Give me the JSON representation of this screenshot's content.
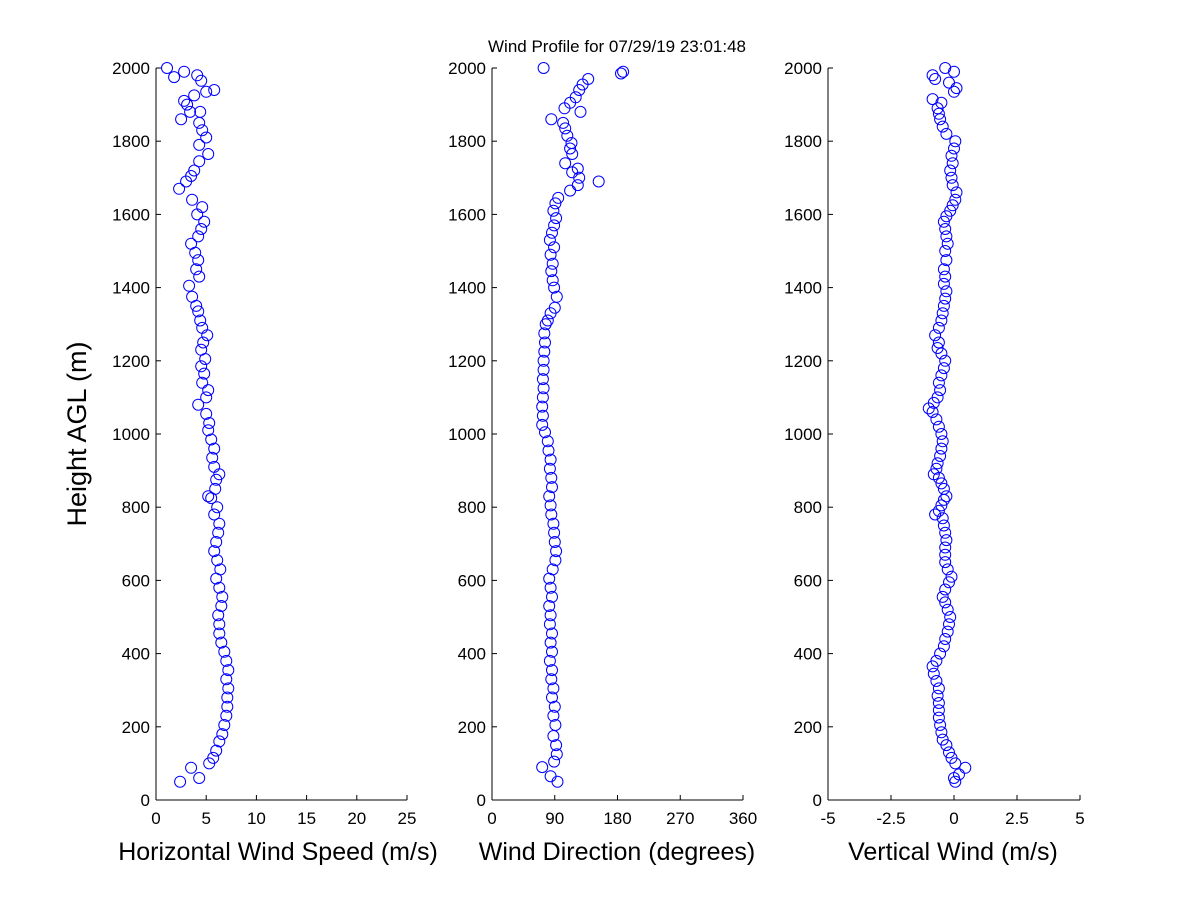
{
  "figure": {
    "title": "Wind Profile for  07/29/19 23:01:48"
  },
  "colors": {
    "marker": "#0000ff",
    "axis": "#000000",
    "background": "#ffffff"
  },
  "chart_data": [
    {
      "type": "scatter",
      "xlabel": "Horizontal Wind Speed (m/s)",
      "ylabel": "Height AGL (m)",
      "xlim": [
        0,
        25
      ],
      "ylim": [
        0,
        2000
      ],
      "xticks": [
        "0",
        "5",
        "10",
        "15",
        "20",
        "25"
      ],
      "xtick_values": [
        0,
        5,
        10,
        15,
        20,
        25
      ],
      "yticks": [
        "0",
        "200",
        "400",
        "600",
        "800",
        "1000",
        "1200",
        "1400",
        "1600",
        "1800",
        "2000"
      ],
      "ytick_values": [
        0,
        200,
        400,
        600,
        800,
        1000,
        1200,
        1400,
        1600,
        1800,
        2000
      ],
      "grid": false,
      "marker": "open-circle",
      "points": [
        [
          2.4,
          50
        ],
        [
          4.3,
          60
        ],
        [
          3.5,
          88
        ],
        [
          5.3,
          100
        ],
        [
          5.7,
          115
        ],
        [
          6.0,
          135
        ],
        [
          6.3,
          160
        ],
        [
          6.6,
          180
        ],
        [
          6.8,
          205
        ],
        [
          7.0,
          230
        ],
        [
          7.1,
          255
        ],
        [
          7.1,
          280
        ],
        [
          7.2,
          305
        ],
        [
          7.0,
          330
        ],
        [
          7.2,
          355
        ],
        [
          7.0,
          380
        ],
        [
          6.8,
          405
        ],
        [
          6.5,
          430
        ],
        [
          6.3,
          455
        ],
        [
          6.3,
          480
        ],
        [
          6.2,
          505
        ],
        [
          6.5,
          530
        ],
        [
          6.6,
          555
        ],
        [
          6.3,
          580
        ],
        [
          6.0,
          605
        ],
        [
          6.4,
          630
        ],
        [
          6.1,
          655
        ],
        [
          5.8,
          680
        ],
        [
          6.0,
          705
        ],
        [
          6.2,
          730
        ],
        [
          6.3,
          755
        ],
        [
          5.8,
          780
        ],
        [
          6.1,
          800
        ],
        [
          5.5,
          825
        ],
        [
          5.2,
          830
        ],
        [
          5.9,
          850
        ],
        [
          6.0,
          875
        ],
        [
          6.3,
          890
        ],
        [
          5.8,
          910
        ],
        [
          5.6,
          935
        ],
        [
          5.8,
          960
        ],
        [
          5.5,
          985
        ],
        [
          5.2,
          1010
        ],
        [
          5.3,
          1030
        ],
        [
          5.0,
          1055
        ],
        [
          4.2,
          1080
        ],
        [
          5.0,
          1100
        ],
        [
          5.2,
          1120
        ],
        [
          4.6,
          1140
        ],
        [
          4.8,
          1165
        ],
        [
          4.5,
          1185
        ],
        [
          4.9,
          1205
        ],
        [
          4.5,
          1230
        ],
        [
          4.7,
          1250
        ],
        [
          5.1,
          1270
        ],
        [
          4.6,
          1290
        ],
        [
          4.4,
          1310
        ],
        [
          4.2,
          1335
        ],
        [
          4.0,
          1350
        ],
        [
          3.6,
          1375
        ],
        [
          3.3,
          1405
        ],
        [
          4.3,
          1430
        ],
        [
          4.0,
          1450
        ],
        [
          4.2,
          1475
        ],
        [
          3.9,
          1495
        ],
        [
          3.5,
          1520
        ],
        [
          4.2,
          1540
        ],
        [
          4.5,
          1560
        ],
        [
          4.8,
          1580
        ],
        [
          4.1,
          1600
        ],
        [
          4.6,
          1620
        ],
        [
          3.6,
          1640
        ],
        [
          2.3,
          1670
        ],
        [
          3.0,
          1690
        ],
        [
          3.5,
          1705
        ],
        [
          3.8,
          1720
        ],
        [
          4.3,
          1745
        ],
        [
          5.2,
          1765
        ],
        [
          4.3,
          1790
        ],
        [
          5.0,
          1810
        ],
        [
          4.6,
          1830
        ],
        [
          4.3,
          1850
        ],
        [
          2.5,
          1860
        ],
        [
          3.4,
          1880
        ],
        [
          4.4,
          1880
        ],
        [
          3.1,
          1900
        ],
        [
          2.8,
          1910
        ],
        [
          3.8,
          1925
        ],
        [
          5.0,
          1935
        ],
        [
          5.8,
          1940
        ],
        [
          4.5,
          1965
        ],
        [
          4.1,
          1980
        ],
        [
          1.8,
          1975
        ],
        [
          2.8,
          1990
        ],
        [
          1.1,
          2000
        ]
      ]
    },
    {
      "type": "scatter",
      "xlabel": "Wind Direction (degrees)",
      "xlim": [
        0,
        360
      ],
      "ylim": [
        0,
        2000
      ],
      "xticks": [
        "0",
        "90",
        "180",
        "270",
        "360"
      ],
      "xtick_values": [
        0,
        90,
        180,
        270,
        360
      ],
      "yticks": [
        "0",
        "200",
        "400",
        "600",
        "800",
        "1000",
        "1200",
        "1400",
        "1600",
        "1800",
        "2000"
      ],
      "ytick_values": [
        0,
        200,
        400,
        600,
        800,
        1000,
        1200,
        1400,
        1600,
        1800,
        2000
      ],
      "grid": false,
      "marker": "open-circle",
      "points": [
        [
          94,
          50
        ],
        [
          84,
          65
        ],
        [
          72,
          90
        ],
        [
          89,
          105
        ],
        [
          93,
          125
        ],
        [
          92,
          150
        ],
        [
          88,
          175
        ],
        [
          91,
          205
        ],
        [
          88,
          230
        ],
        [
          90,
          255
        ],
        [
          86,
          280
        ],
        [
          88,
          305
        ],
        [
          85,
          330
        ],
        [
          86,
          355
        ],
        [
          83,
          380
        ],
        [
          86,
          405
        ],
        [
          84,
          430
        ],
        [
          86,
          455
        ],
        [
          83,
          480
        ],
        [
          84,
          505
        ],
        [
          82,
          530
        ],
        [
          86,
          555
        ],
        [
          84,
          580
        ],
        [
          82,
          605
        ],
        [
          87,
          630
        ],
        [
          91,
          655
        ],
        [
          92,
          680
        ],
        [
          90,
          705
        ],
        [
          89,
          730
        ],
        [
          88,
          755
        ],
        [
          85,
          780
        ],
        [
          84,
          805
        ],
        [
          82,
          830
        ],
        [
          86,
          855
        ],
        [
          85,
          880
        ],
        [
          83,
          905
        ],
        [
          84,
          930
        ],
        [
          81,
          955
        ],
        [
          80,
          980
        ],
        [
          76,
          1005
        ],
        [
          72,
          1025
        ],
        [
          73,
          1050
        ],
        [
          72,
          1075
        ],
        [
          73,
          1100
        ],
        [
          74,
          1125
        ],
        [
          73,
          1150
        ],
        [
          74,
          1175
        ],
        [
          74,
          1200
        ],
        [
          75,
          1225
        ],
        [
          76,
          1250
        ],
        [
          75,
          1275
        ],
        [
          77,
          1300
        ],
        [
          80,
          1310
        ],
        [
          84,
          1330
        ],
        [
          90,
          1345
        ],
        [
          93,
          1375
        ],
        [
          89,
          1400
        ],
        [
          87,
          1420
        ],
        [
          85,
          1445
        ],
        [
          87,
          1465
        ],
        [
          84,
          1490
        ],
        [
          89,
          1510
        ],
        [
          83,
          1530
        ],
        [
          86,
          1550
        ],
        [
          89,
          1570
        ],
        [
          92,
          1590
        ],
        [
          88,
          1610
        ],
        [
          91,
          1630
        ],
        [
          95,
          1645
        ],
        [
          112,
          1665
        ],
        [
          123,
          1680
        ],
        [
          153,
          1690
        ],
        [
          125,
          1700
        ],
        [
          115,
          1715
        ],
        [
          123,
          1725
        ],
        [
          105,
          1740
        ],
        [
          115,
          1765
        ],
        [
          112,
          1780
        ],
        [
          114,
          1795
        ],
        [
          108,
          1815
        ],
        [
          105,
          1835
        ],
        [
          102,
          1850
        ],
        [
          85,
          1860
        ],
        [
          127,
          1880
        ],
        [
          104,
          1890
        ],
        [
          112,
          1905
        ],
        [
          120,
          1920
        ],
        [
          125,
          1940
        ],
        [
          130,
          1955
        ],
        [
          138,
          1970
        ],
        [
          185,
          1985
        ],
        [
          188,
          1990
        ],
        [
          74,
          2000
        ]
      ]
    },
    {
      "type": "scatter",
      "xlabel": "Vertical Wind (m/s)",
      "xlim": [
        -5,
        5
      ],
      "ylim": [
        0,
        2000
      ],
      "xticks": [
        "-5",
        "-2.5",
        "0",
        "2.5",
        "5"
      ],
      "xtick_values": [
        -5,
        -2.5,
        0,
        2.5,
        5
      ],
      "yticks": [
        "0",
        "200",
        "400",
        "600",
        "800",
        "1000",
        "1200",
        "1400",
        "1600",
        "1800",
        "2000"
      ],
      "ytick_values": [
        0,
        200,
        400,
        600,
        800,
        1000,
        1200,
        1400,
        1600,
        1800,
        2000
      ],
      "grid": false,
      "marker": "open-circle",
      "points": [
        [
          0.05,
          50
        ],
        [
          0.0,
          60
        ],
        [
          0.2,
          70
        ],
        [
          0.45,
          88
        ],
        [
          0.05,
          100
        ],
        [
          -0.1,
          115
        ],
        [
          -0.2,
          130
        ],
        [
          -0.3,
          150
        ],
        [
          -0.45,
          165
        ],
        [
          -0.5,
          185
        ],
        [
          -0.55,
          205
        ],
        [
          -0.6,
          225
        ],
        [
          -0.6,
          245
        ],
        [
          -0.6,
          265
        ],
        [
          -0.65,
          285
        ],
        [
          -0.6,
          305
        ],
        [
          -0.7,
          325
        ],
        [
          -0.8,
          345
        ],
        [
          -0.85,
          365
        ],
        [
          -0.7,
          380
        ],
        [
          -0.55,
          400
        ],
        [
          -0.4,
          420
        ],
        [
          -0.35,
          440
        ],
        [
          -0.25,
          460
        ],
        [
          -0.2,
          480
        ],
        [
          -0.15,
          500
        ],
        [
          -0.25,
          520
        ],
        [
          -0.35,
          540
        ],
        [
          -0.45,
          555
        ],
        [
          -0.35,
          575
        ],
        [
          -0.2,
          595
        ],
        [
          -0.1,
          610
        ],
        [
          -0.25,
          630
        ],
        [
          -0.35,
          650
        ],
        [
          -0.35,
          670
        ],
        [
          -0.35,
          690
        ],
        [
          -0.3,
          710
        ],
        [
          -0.35,
          730
        ],
        [
          -0.4,
          750
        ],
        [
          -0.45,
          770
        ],
        [
          -0.75,
          780
        ],
        [
          -0.6,
          790
        ],
        [
          -0.5,
          805
        ],
        [
          -0.4,
          820
        ],
        [
          -0.3,
          830
        ],
        [
          -0.4,
          850
        ],
        [
          -0.5,
          865
        ],
        [
          -0.6,
          880
        ],
        [
          -0.8,
          890
        ],
        [
          -0.7,
          905
        ],
        [
          -0.65,
          920
        ],
        [
          -0.55,
          940
        ],
        [
          -0.5,
          960
        ],
        [
          -0.45,
          980
        ],
        [
          -0.5,
          1000
        ],
        [
          -0.6,
          1020
        ],
        [
          -0.7,
          1040
        ],
        [
          -0.85,
          1060
        ],
        [
          -1.0,
          1070
        ],
        [
          -0.8,
          1085
        ],
        [
          -0.65,
          1100
        ],
        [
          -0.55,
          1120
        ],
        [
          -0.6,
          1140
        ],
        [
          -0.5,
          1160
        ],
        [
          -0.4,
          1180
        ],
        [
          -0.35,
          1200
        ],
        [
          -0.5,
          1220
        ],
        [
          -0.65,
          1235
        ],
        [
          -0.6,
          1250
        ],
        [
          -0.75,
          1270
        ],
        [
          -0.6,
          1290
        ],
        [
          -0.5,
          1310
        ],
        [
          -0.45,
          1330
        ],
        [
          -0.4,
          1350
        ],
        [
          -0.35,
          1370
        ],
        [
          -0.3,
          1390
        ],
        [
          -0.4,
          1410
        ],
        [
          -0.35,
          1430
        ],
        [
          -0.4,
          1450
        ],
        [
          -0.3,
          1475
        ],
        [
          -0.35,
          1500
        ],
        [
          -0.25,
          1520
        ],
        [
          -0.3,
          1540
        ],
        [
          -0.35,
          1560
        ],
        [
          -0.4,
          1580
        ],
        [
          -0.3,
          1595
        ],
        [
          -0.15,
          1610
        ],
        [
          -0.05,
          1625
        ],
        [
          0.05,
          1640
        ],
        [
          0.1,
          1660
        ],
        [
          -0.05,
          1680
        ],
        [
          -0.1,
          1700
        ],
        [
          -0.15,
          1720
        ],
        [
          -0.05,
          1740
        ],
        [
          -0.1,
          1760
        ],
        [
          0.0,
          1780
        ],
        [
          0.05,
          1800
        ],
        [
          -0.3,
          1820
        ],
        [
          -0.45,
          1840
        ],
        [
          -0.55,
          1860
        ],
        [
          -0.6,
          1875
        ],
        [
          -0.65,
          1890
        ],
        [
          -0.5,
          1905
        ],
        [
          -0.85,
          1915
        ],
        [
          0.0,
          1935
        ],
        [
          0.1,
          1945
        ],
        [
          -0.2,
          1960
        ],
        [
          -0.75,
          1970
        ],
        [
          -0.85,
          1980
        ],
        [
          0.0,
          1990
        ],
        [
          -0.35,
          2000
        ]
      ]
    }
  ]
}
